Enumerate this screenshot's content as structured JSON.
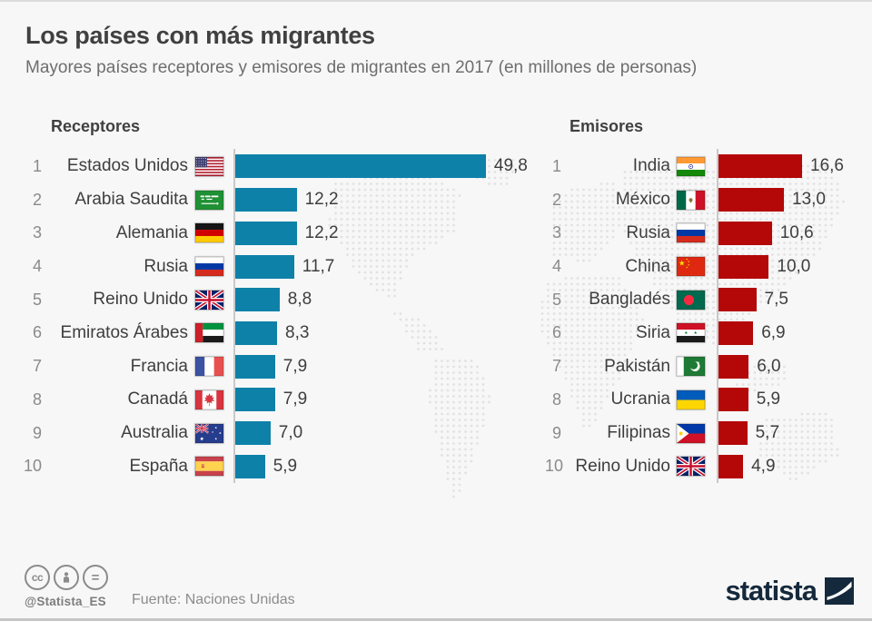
{
  "header": {
    "title": "Los países con más migrantes",
    "subtitle": "Mayores países receptores y emisores de migrantes en 2017 (en millones de personas)"
  },
  "chart_data": [
    {
      "type": "bar",
      "title": "Receptores",
      "orientation": "horizontal",
      "unit": "millones de personas",
      "year": "2017",
      "bar_color": "#0e81a9",
      "xlim": [
        0,
        62
      ],
      "grid": false,
      "rows": [
        {
          "rank": "1",
          "country": "Estados Unidos",
          "flag": "us",
          "value": 49.8,
          "label": "49,8"
        },
        {
          "rank": "2",
          "country": "Arabia Saudita",
          "flag": "sa",
          "value": 12.2,
          "label": "12,2"
        },
        {
          "rank": "3",
          "country": "Alemania",
          "flag": "de",
          "value": 12.2,
          "label": "12,2"
        },
        {
          "rank": "4",
          "country": "Rusia",
          "flag": "ru",
          "value": 11.7,
          "label": "11,7"
        },
        {
          "rank": "5",
          "country": "Reino Unido",
          "flag": "gb",
          "value": 8.8,
          "label": "8,8"
        },
        {
          "rank": "6",
          "country": "Emiratos Árabes",
          "flag": "ae",
          "value": 8.3,
          "label": "8,3"
        },
        {
          "rank": "7",
          "country": "Francia",
          "flag": "fr",
          "value": 7.9,
          "label": "7,9"
        },
        {
          "rank": "8",
          "country": "Canadá",
          "flag": "ca",
          "value": 7.9,
          "label": "7,9"
        },
        {
          "rank": "9",
          "country": "Australia",
          "flag": "au",
          "value": 7.0,
          "label": "7,0"
        },
        {
          "rank": "10",
          "country": "España",
          "flag": "es",
          "value": 5.9,
          "label": "5,9"
        }
      ]
    },
    {
      "type": "bar",
      "title": "Emisores",
      "orientation": "horizontal",
      "unit": "millones de personas",
      "year": "2017",
      "bar_color": "#b40708",
      "xlim": [
        0,
        30.5
      ],
      "grid": false,
      "rows": [
        {
          "rank": "1",
          "country": "India",
          "flag": "in",
          "value": 16.6,
          "label": "16,6"
        },
        {
          "rank": "2",
          "country": "México",
          "flag": "mx",
          "value": 13.0,
          "label": "13,0"
        },
        {
          "rank": "3",
          "country": "Rusia",
          "flag": "ru",
          "value": 10.6,
          "label": "10,6"
        },
        {
          "rank": "4",
          "country": "China",
          "flag": "cn",
          "value": 10.0,
          "label": "10,0"
        },
        {
          "rank": "5",
          "country": "Bangladés",
          "flag": "bd",
          "value": 7.5,
          "label": "7,5"
        },
        {
          "rank": "6",
          "country": "Siria",
          "flag": "sy",
          "value": 6.9,
          "label": "6,9"
        },
        {
          "rank": "7",
          "country": "Pakistán",
          "flag": "pk",
          "value": 6.0,
          "label": "6,0"
        },
        {
          "rank": "8",
          "country": "Ucrania",
          "flag": "ua",
          "value": 5.9,
          "label": "5,9"
        },
        {
          "rank": "9",
          "country": "Filipinas",
          "flag": "ph",
          "value": 5.7,
          "label": "5,7"
        },
        {
          "rank": "10",
          "country": "Reino Unido",
          "flag": "gb",
          "value": 4.9,
          "label": "4,9"
        }
      ]
    }
  ],
  "footer": {
    "license_handle": "@Statista_ES",
    "source": "Fuente: Naciones Unidas",
    "brand": "statista"
  },
  "icons": {
    "cc": "cc-circle-icon",
    "attribution": "person-circle-icon",
    "nd": "equals-circle-icon",
    "brand_mark": "statista-swoosh-icon",
    "background": "dotted-world-map"
  },
  "colors": {
    "receptor_bar": "#0e81a9",
    "emisor_bar": "#b40708",
    "background": "#f7f7f7",
    "axis_line": "#c9c9c9",
    "title_text": "#404040",
    "subtitle_text": "#6e6e6e",
    "brand_navy": "#15293c",
    "map_dots": "#e2e2e2"
  }
}
